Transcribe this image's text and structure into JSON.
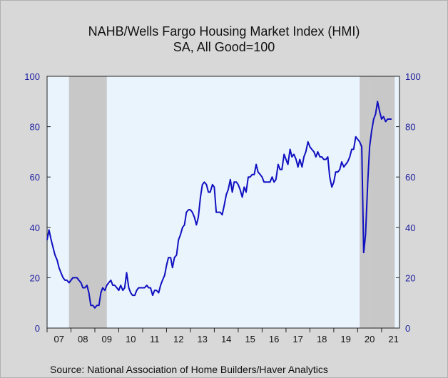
{
  "chart_data": {
    "type": "line",
    "title": "NAHB/Wells Fargo Housing Market Index (HMI)",
    "subtitle": "SA, All Good=100",
    "source": "Source:  National Association of Home Builders/Haver Analytics",
    "ylim": [
      0,
      100
    ],
    "xlim": [
      2007.0,
      2021.75
    ],
    "y_ticks": [
      0,
      20,
      40,
      60,
      80,
      100
    ],
    "x_tick_labels": [
      "07",
      "08",
      "09",
      "10",
      "11",
      "12",
      "13",
      "14",
      "15",
      "16",
      "17",
      "18",
      "19",
      "20",
      "21"
    ],
    "recessions": [
      [
        2007.917,
        2009.5
      ],
      [
        2020.083,
        2020.5
      ],
      [
        2020.5,
        2021.55
      ]
    ],
    "series_color": "#1010c0",
    "series": [
      {
        "x": [
          2007.0,
          2007.08,
          2007.17,
          2007.25,
          2007.33,
          2007.42,
          2007.5,
          2007.58,
          2007.67,
          2007.75,
          2007.83,
          2007.92,
          2008.0,
          2008.08,
          2008.17,
          2008.25,
          2008.33,
          2008.42,
          2008.5,
          2008.58,
          2008.67,
          2008.75,
          2008.83,
          2008.92,
          2009.0,
          2009.08,
          2009.17,
          2009.25,
          2009.33,
          2009.42,
          2009.5,
          2009.58,
          2009.67,
          2009.75,
          2009.83,
          2009.92,
          2010.0,
          2010.08,
          2010.17,
          2010.25,
          2010.33,
          2010.42,
          2010.5,
          2010.58,
          2010.67,
          2010.75,
          2010.83,
          2010.92,
          2011.0,
          2011.08,
          2011.17,
          2011.25,
          2011.33,
          2011.42,
          2011.5,
          2011.58,
          2011.67,
          2011.75,
          2011.83,
          2011.92,
          2012.0,
          2012.08,
          2012.17,
          2012.25,
          2012.33,
          2012.42,
          2012.5,
          2012.58,
          2012.67,
          2012.75,
          2012.83,
          2012.92,
          2013.0,
          2013.08,
          2013.17,
          2013.25,
          2013.33,
          2013.42,
          2013.5,
          2013.58,
          2013.67,
          2013.75,
          2013.83,
          2013.92,
          2014.0,
          2014.08,
          2014.17,
          2014.25,
          2014.33,
          2014.42,
          2014.5,
          2014.58,
          2014.67,
          2014.75,
          2014.83,
          2014.92,
          2015.0,
          2015.08,
          2015.17,
          2015.25,
          2015.33,
          2015.42,
          2015.5,
          2015.58,
          2015.67,
          2015.75,
          2015.83,
          2015.92,
          2016.0,
          2016.08,
          2016.17,
          2016.25,
          2016.33,
          2016.42,
          2016.5,
          2016.58,
          2016.67,
          2016.75,
          2016.83,
          2016.92,
          2017.0,
          2017.08,
          2017.17,
          2017.25,
          2017.33,
          2017.42,
          2017.5,
          2017.58,
          2017.67,
          2017.75,
          2017.83,
          2017.92,
          2018.0,
          2018.08,
          2018.17,
          2018.25,
          2018.33,
          2018.42,
          2018.5,
          2018.58,
          2018.67,
          2018.75,
          2018.83,
          2018.92,
          2019.0,
          2019.08,
          2019.17,
          2019.25,
          2019.33,
          2019.42,
          2019.5,
          2019.58,
          2019.67,
          2019.75,
          2019.83,
          2019.92,
          2020.0,
          2020.08,
          2020.17,
          2020.25,
          2020.33,
          2020.42,
          2020.5,
          2020.58,
          2020.67,
          2020.75,
          2020.83,
          2020.92,
          2021.0,
          2021.08,
          2021.17,
          2021.25,
          2021.33,
          2021.42
        ],
        "values": [
          35,
          39,
          35,
          32,
          29,
          27,
          24,
          22,
          20,
          19,
          19,
          18,
          19,
          20,
          20,
          20,
          19,
          18,
          16,
          16,
          17,
          14,
          9,
          9,
          8,
          9,
          9,
          14,
          16,
          15,
          17,
          18,
          19,
          17,
          17,
          16,
          15,
          17,
          15,
          16,
          22,
          16,
          14,
          13,
          13,
          15,
          16,
          16,
          16,
          16,
          17,
          16,
          16,
          13,
          15,
          15,
          14,
          17,
          19,
          21,
          25,
          28,
          28,
          24,
          28,
          29,
          35,
          37,
          40,
          41,
          46,
          47,
          47,
          46,
          44,
          41,
          44,
          52,
          57,
          58,
          57,
          54,
          54,
          57,
          56,
          46,
          46,
          46,
          45,
          49,
          53,
          55,
          59,
          54,
          58,
          58,
          57,
          55,
          52,
          56,
          54,
          60,
          60,
          61,
          61,
          65,
          62,
          61,
          60,
          58,
          58,
          58,
          58,
          60,
          58,
          59,
          65,
          63,
          63,
          69,
          67,
          65,
          71,
          68,
          69,
          67,
          64,
          67,
          64,
          68,
          70,
          74,
          72,
          71,
          70,
          68,
          70,
          68,
          68,
          67,
          67,
          68,
          60,
          56,
          58,
          62,
          62,
          63,
          66,
          64,
          65,
          66,
          68,
          71,
          71,
          76,
          75,
          74,
          72,
          30,
          37,
          58,
          72,
          78,
          83,
          85,
          90,
          86,
          83,
          84,
          82,
          83,
          83,
          83
        ]
      }
    ]
  }
}
